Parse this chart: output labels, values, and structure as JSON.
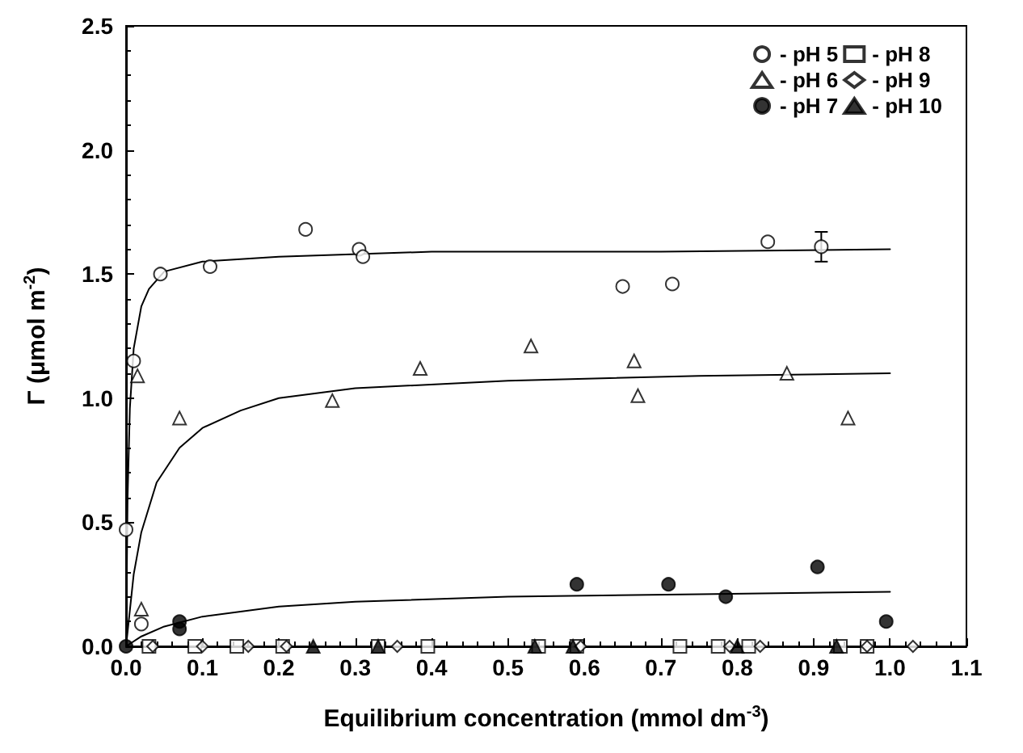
{
  "chart_data": {
    "type": "scatter",
    "xlabel": "Equilibrium concentration (mmol dm$^{-3}$)",
    "ylabel": "Γ (μmol m$^{-2}$)",
    "xlim": [
      0,
      1.1
    ],
    "xticks": [
      {
        "value": 0,
        "label": "0.0"
      },
      {
        "value": 0.1,
        "label": "0.1"
      },
      {
        "value": 0.2,
        "label": "0.2"
      },
      {
        "value": 0.3,
        "label": "0.3"
      },
      {
        "value": 0.4,
        "label": "0.4"
      },
      {
        "value": 0.5,
        "label": "0.5"
      },
      {
        "value": 0.6,
        "label": "0.6"
      },
      {
        "value": 0.7,
        "label": "0.7"
      },
      {
        "value": 0.8,
        "label": "0.8"
      },
      {
        "value": 0.9,
        "label": "0.9"
      },
      {
        "value": 1,
        "label": "1.0"
      },
      {
        "value": 1.1,
        "label": "1.1"
      }
    ],
    "ylim": [
      0,
      2.5
    ],
    "yticks": [
      {
        "value": 0,
        "label": "0.0"
      },
      {
        "value": 0.5,
        "label": "0.5"
      },
      {
        "value": 1,
        "label": "1.0"
      },
      {
        "value": 1.5,
        "label": "1.5"
      },
      {
        "value": 2,
        "label": "2.0"
      },
      {
        "value": 2.5,
        "label": "2.5"
      }
    ],
    "grid": false,
    "legend": "top right",
    "series": [
      {
        "name": "- pH 5",
        "color": "#ffffff",
        "marker": "circle",
        "x": [
          0,
          0.01,
          0.02,
          0.045,
          0.11,
          0.235,
          0.305,
          0.31,
          0.65,
          0.715,
          0.84,
          0.91
        ],
        "values": [
          0.47,
          1.15,
          0.09,
          1.5,
          1.53,
          1.68,
          1.6,
          1.57,
          1.45,
          1.46,
          1.63,
          1.61
        ],
        "errors": [
          null,
          null,
          null,
          null,
          null,
          null,
          null,
          null,
          null,
          null,
          null,
          0.06
        ]
      },
      {
        "name": "- pH 6",
        "color": "#ffffff",
        "marker": "triangle",
        "x": [
          0.015,
          0.02,
          0.07,
          0.27,
          0.385,
          0.53,
          0.665,
          0.67,
          0.865,
          0.945
        ],
        "values": [
          1.09,
          0.15,
          0.92,
          0.99,
          1.12,
          1.21,
          1.15,
          1.01,
          1.1,
          0.92
        ]
      },
      {
        "name": "- pH 7",
        "color": "#000000",
        "marker": "circle",
        "x": [
          0,
          0.07,
          0.07,
          0.59,
          0.71,
          0.785,
          0.905,
          0.995
        ],
        "values": [
          0,
          0.1,
          0.07,
          0.25,
          0.25,
          0.2,
          0.32,
          0.1
        ]
      },
      {
        "name": "- pH 8",
        "color": "#ffffff",
        "marker": "square",
        "x": [
          0.03,
          0.09,
          0.145,
          0.205,
          0.33,
          0.395,
          0.54,
          0.59,
          0.725,
          0.775,
          0.815,
          0.935,
          0.97
        ],
        "values": [
          0,
          0,
          0,
          0,
          0,
          0,
          0,
          0,
          0,
          0,
          0,
          0,
          0
        ]
      },
      {
        "name": "- pH 9",
        "color": "#ffffff",
        "marker": "diamond",
        "x": [
          0.035,
          0.1,
          0.16,
          0.21,
          0.355,
          0.595,
          0.79,
          0.83,
          0.97,
          1.03
        ],
        "values": [
          0,
          0,
          0,
          0,
          0,
          0,
          0,
          0,
          0,
          0
        ]
      },
      {
        "name": "- pH 10",
        "color": "#000000",
        "marker": "triangle",
        "x": [
          0.245,
          0.33,
          0.535,
          0.585,
          0.8,
          0.93
        ],
        "values": [
          0,
          0,
          0,
          0,
          0,
          0
        ]
      },
      {
        "type": "line",
        "color": "#000000",
        "marker": "none",
        "x": [
          0,
          0.002,
          0.005,
          0.01,
          0.02,
          0.03,
          0.05,
          0.1,
          0.2,
          0.4,
          0.7,
          1
        ],
        "values": [
          0,
          0.6,
          0.96,
          1.2,
          1.37,
          1.44,
          1.51,
          1.55,
          1.57,
          1.59,
          1.59,
          1.6
        ]
      },
      {
        "type": "line",
        "color": "#000000",
        "marker": "none",
        "x": [
          0,
          0.01,
          0.02,
          0.04,
          0.07,
          0.1,
          0.15,
          0.2,
          0.3,
          0.5,
          0.75,
          1
        ],
        "values": [
          0,
          0.29,
          0.46,
          0.66,
          0.8,
          0.88,
          0.95,
          1,
          1.04,
          1.07,
          1.09,
          1.1
        ]
      },
      {
        "type": "line",
        "color": "#000000",
        "marker": "none",
        "x": [
          0,
          0.02,
          0.05,
          0.1,
          0.2,
          0.3,
          0.5,
          0.75,
          1
        ],
        "values": [
          0,
          0.04,
          0.08,
          0.12,
          0.16,
          0.18,
          0.2,
          0.21,
          0.22
        ]
      }
    ]
  }
}
